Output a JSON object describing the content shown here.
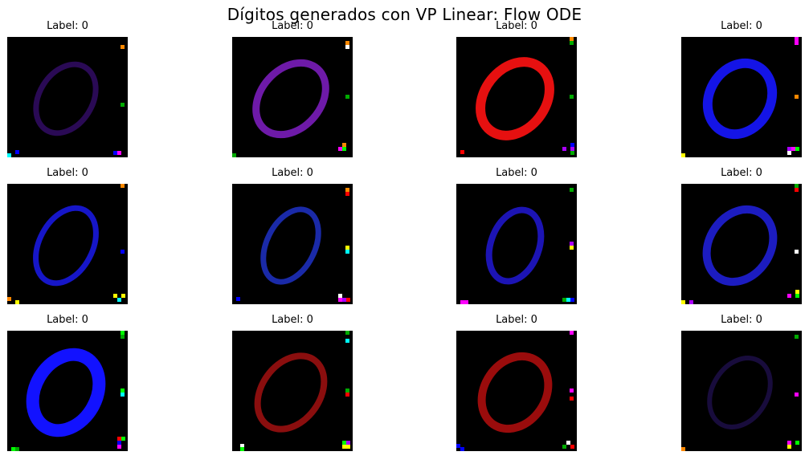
{
  "figure": {
    "title": "Dígitos generados con VP Linear: Flow ODE"
  },
  "samples": [
    {
      "label": "Label: 0",
      "digit": "0",
      "color": "#2a0a55",
      "ring": {
        "rx": 33,
        "ry": 46,
        "rot": 32,
        "w": 7
      }
    },
    {
      "label": "Label: 0",
      "digit": "0",
      "color": "#6e1aa8",
      "ring": {
        "rx": 37,
        "ry": 50,
        "rot": 42,
        "w": 9
      }
    },
    {
      "label": "Label: 0",
      "digit": "0",
      "color": "#e61010",
      "ring": {
        "rx": 38,
        "ry": 50,
        "rot": 38,
        "w": 12
      }
    },
    {
      "label": "Label: 0",
      "digit": "0",
      "color": "#1414e6",
      "ring": {
        "rx": 38,
        "ry": 46,
        "rot": 30,
        "w": 12
      }
    },
    {
      "label": "Label: 0",
      "digit": "0",
      "color": "#1616c8",
      "ring": {
        "rx": 33,
        "ry": 50,
        "rot": 28,
        "w": 7
      }
    },
    {
      "label": "Label: 0",
      "digit": "0",
      "color": "#1a2aa8",
      "ring": {
        "rx": 30,
        "ry": 48,
        "rot": 26,
        "w": 7
      }
    },
    {
      "label": "Label: 0",
      "digit": "0",
      "color": "#1c14b4",
      "ring": {
        "rx": 30,
        "ry": 46,
        "rot": 20,
        "w": 8
      }
    },
    {
      "label": "Label: 0",
      "digit": "0",
      "color": "#1c1cc0",
      "ring": {
        "rx": 38,
        "ry": 48,
        "rot": 34,
        "w": 10
      }
    },
    {
      "label": "Label: 0",
      "digit": "0",
      "color": "#1212ff",
      "ring": {
        "rx": 38,
        "ry": 50,
        "rot": 30,
        "w": 16
      }
    },
    {
      "label": "Label: 0",
      "digit": "0",
      "color": "#8a0e0e",
      "ring": {
        "rx": 36,
        "ry": 50,
        "rot": 36,
        "w": 8
      }
    },
    {
      "label": "Label: 0",
      "digit": "0",
      "color": "#9a0c0c",
      "ring": {
        "rx": 38,
        "ry": 48,
        "rot": 34,
        "w": 10
      }
    },
    {
      "label": "Label: 0",
      "digit": "0",
      "color": "#180c3c",
      "ring": {
        "rx": 34,
        "ry": 46,
        "rot": 32,
        "w": 6
      }
    }
  ]
}
